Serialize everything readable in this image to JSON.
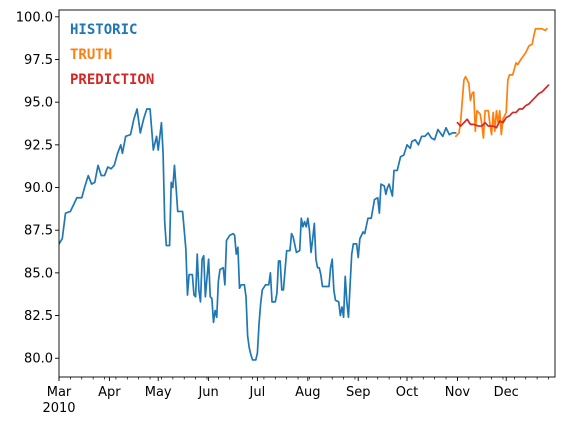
{
  "chart_data": {
    "type": "line",
    "title": "",
    "xlabel": "",
    "ylabel": "",
    "x_range": [
      "2010-03-01",
      "2010-12-31"
    ],
    "ylim": [
      78.9,
      100.4
    ],
    "grid": false,
    "legend_placement": "top-left",
    "y_ticks": [
      {
        "value": 80.0,
        "label": "80.0"
      },
      {
        "value": 82.5,
        "label": "82.5"
      },
      {
        "value": 85.0,
        "label": "85.0"
      },
      {
        "value": 87.5,
        "label": "87.5"
      },
      {
        "value": 90.0,
        "label": "90.0"
      },
      {
        "value": 92.5,
        "label": "92.5"
      },
      {
        "value": 95.0,
        "label": "95.0"
      },
      {
        "value": 97.5,
        "label": "97.5"
      },
      {
        "value": 100.0,
        "label": "100.0"
      }
    ],
    "x_ticks": [
      {
        "date": "2010-03-01",
        "label": "Mar",
        "sublabel": "2010"
      },
      {
        "date": "2010-04-01",
        "label": "Apr"
      },
      {
        "date": "2010-05-01",
        "label": "May"
      },
      {
        "date": "2010-06-01",
        "label": "Jun"
      },
      {
        "date": "2010-07-01",
        "label": "Jul"
      },
      {
        "date": "2010-08-01",
        "label": "Aug"
      },
      {
        "date": "2010-09-01",
        "label": "Sep"
      },
      {
        "date": "2010-10-01",
        "label": "Oct"
      },
      {
        "date": "2010-11-01",
        "label": "Nov"
      },
      {
        "date": "2010-12-01",
        "label": "Dec"
      }
    ],
    "series": [
      {
        "name": "HISTORIC",
        "color": "#1f77b4",
        "points": [
          [
            "2010-03-01",
            86.7
          ],
          [
            "2010-03-03",
            87.0
          ],
          [
            "2010-03-05",
            88.5
          ],
          [
            "2010-03-08",
            88.6
          ],
          [
            "2010-03-10",
            89.0
          ],
          [
            "2010-03-12",
            89.4
          ],
          [
            "2010-03-15",
            89.4
          ],
          [
            "2010-03-17",
            90.1
          ],
          [
            "2010-03-19",
            90.7
          ],
          [
            "2010-03-21",
            90.2
          ],
          [
            "2010-03-23",
            90.3
          ],
          [
            "2010-03-25",
            91.3
          ],
          [
            "2010-03-27",
            90.7
          ],
          [
            "2010-03-29",
            90.7
          ],
          [
            "2010-03-31",
            91.2
          ],
          [
            "2010-04-02",
            91.1
          ],
          [
            "2010-04-04",
            91.3
          ],
          [
            "2010-04-06",
            92.0
          ],
          [
            "2010-04-08",
            92.5
          ],
          [
            "2010-04-09",
            92.0
          ],
          [
            "2010-04-11",
            93.0
          ],
          [
            "2010-04-14",
            93.1
          ],
          [
            "2010-04-16",
            94.0
          ],
          [
            "2010-04-18",
            94.6
          ],
          [
            "2010-04-20",
            93.2
          ],
          [
            "2010-04-22",
            94.0
          ],
          [
            "2010-04-24",
            94.6
          ],
          [
            "2010-04-26",
            94.6
          ],
          [
            "2010-04-28",
            92.2
          ],
          [
            "2010-04-30",
            93.0
          ],
          [
            "2010-05-01",
            92.2
          ],
          [
            "2010-05-03",
            93.8
          ],
          [
            "2010-05-04",
            92.0
          ],
          [
            "2010-05-05",
            88.0
          ],
          [
            "2010-05-06",
            86.6
          ],
          [
            "2010-05-08",
            86.6
          ],
          [
            "2010-05-09",
            90.3
          ],
          [
            "2010-05-10",
            90.0
          ],
          [
            "2010-05-11",
            91.3
          ],
          [
            "2010-05-12",
            90.0
          ],
          [
            "2010-05-13",
            88.6
          ],
          [
            "2010-05-16",
            88.6
          ],
          [
            "2010-05-18",
            86.4
          ],
          [
            "2010-05-19",
            83.7
          ],
          [
            "2010-05-20",
            84.9
          ],
          [
            "2010-05-22",
            84.9
          ],
          [
            "2010-05-23",
            83.7
          ],
          [
            "2010-05-24",
            83.6
          ],
          [
            "2010-05-25",
            86.1
          ],
          [
            "2010-05-26",
            84.0
          ],
          [
            "2010-05-27",
            83.3
          ],
          [
            "2010-05-28",
            85.8
          ],
          [
            "2010-05-29",
            86.0
          ],
          [
            "2010-05-30",
            83.6
          ],
          [
            "2010-06-01",
            85.8
          ],
          [
            "2010-06-02",
            83.6
          ],
          [
            "2010-06-03",
            83.5
          ],
          [
            "2010-06-04",
            82.1
          ],
          [
            "2010-06-05",
            82.8
          ],
          [
            "2010-06-06",
            82.4
          ],
          [
            "2010-06-07",
            84.5
          ],
          [
            "2010-06-08",
            85.2
          ],
          [
            "2010-06-10",
            85.3
          ],
          [
            "2010-06-11",
            84.3
          ],
          [
            "2010-06-12",
            86.9
          ],
          [
            "2010-06-14",
            87.2
          ],
          [
            "2010-06-16",
            87.3
          ],
          [
            "2010-06-17",
            87.2
          ],
          [
            "2010-06-18",
            86.1
          ],
          [
            "2010-06-19",
            86.5
          ],
          [
            "2010-06-20",
            84.1
          ],
          [
            "2010-06-21",
            84.3
          ],
          [
            "2010-06-23",
            84.3
          ],
          [
            "2010-06-24",
            83.6
          ],
          [
            "2010-06-25",
            81.3
          ],
          [
            "2010-06-26",
            80.6
          ],
          [
            "2010-06-27",
            80.2
          ],
          [
            "2010-06-28",
            79.9
          ],
          [
            "2010-06-30",
            79.9
          ],
          [
            "2010-07-01",
            80.3
          ],
          [
            "2010-07-02",
            82.0
          ],
          [
            "2010-07-03",
            83.2
          ],
          [
            "2010-07-04",
            84.0
          ],
          [
            "2010-07-06",
            84.3
          ],
          [
            "2010-07-08",
            84.3
          ],
          [
            "2010-07-09",
            85.0
          ],
          [
            "2010-07-10",
            83.3
          ],
          [
            "2010-07-12",
            83.3
          ],
          [
            "2010-07-13",
            83.8
          ],
          [
            "2010-07-14",
            85.7
          ],
          [
            "2010-07-15",
            85.7
          ],
          [
            "2010-07-16",
            84.0
          ],
          [
            "2010-07-17",
            84.0
          ],
          [
            "2010-07-19",
            86.3
          ],
          [
            "2010-07-21",
            86.3
          ],
          [
            "2010-07-22",
            87.3
          ],
          [
            "2010-07-23",
            87.1
          ],
          [
            "2010-07-25",
            86.2
          ],
          [
            "2010-07-27",
            86.3
          ],
          [
            "2010-07-28",
            88.2
          ],
          [
            "2010-07-29",
            87.7
          ],
          [
            "2010-07-30",
            88.0
          ],
          [
            "2010-07-31",
            87.7
          ],
          [
            "2010-08-01",
            88.2
          ],
          [
            "2010-08-02",
            87.5
          ],
          [
            "2010-08-03",
            86.2
          ],
          [
            "2010-08-04",
            87.0
          ],
          [
            "2010-08-05",
            87.9
          ],
          [
            "2010-08-06",
            85.8
          ],
          [
            "2010-08-07",
            85.3
          ],
          [
            "2010-08-08",
            85.3
          ],
          [
            "2010-08-09",
            84.9
          ],
          [
            "2010-08-10",
            84.2
          ],
          [
            "2010-08-12",
            84.2
          ],
          [
            "2010-08-14",
            84.2
          ],
          [
            "2010-08-15",
            85.3
          ],
          [
            "2010-08-16",
            85.8
          ],
          [
            "2010-08-17",
            84.0
          ],
          [
            "2010-08-18",
            83.4
          ],
          [
            "2010-08-20",
            83.3
          ],
          [
            "2010-08-21",
            82.5
          ],
          [
            "2010-08-22",
            83.0
          ],
          [
            "2010-08-23",
            82.4
          ],
          [
            "2010-08-24",
            84.8
          ],
          [
            "2010-08-25",
            83.3
          ],
          [
            "2010-08-26",
            82.4
          ],
          [
            "2010-08-27",
            84.3
          ],
          [
            "2010-08-28",
            86.1
          ],
          [
            "2010-08-29",
            86.7
          ],
          [
            "2010-08-31",
            86.7
          ],
          [
            "2010-09-01",
            85.9
          ],
          [
            "2010-09-02",
            87.0
          ],
          [
            "2010-09-04",
            87.4
          ],
          [
            "2010-09-05",
            87.3
          ],
          [
            "2010-09-07",
            88.2
          ],
          [
            "2010-09-09",
            88.2
          ],
          [
            "2010-09-11",
            89.3
          ],
          [
            "2010-09-13",
            89.4
          ],
          [
            "2010-09-14",
            88.5
          ],
          [
            "2010-09-15",
            90.2
          ],
          [
            "2010-09-17",
            90.1
          ],
          [
            "2010-09-18",
            89.6
          ],
          [
            "2010-09-19",
            90.0
          ],
          [
            "2010-09-20",
            90.2
          ],
          [
            "2010-09-22",
            89.5
          ],
          [
            "2010-09-23",
            91.0
          ],
          [
            "2010-09-25",
            91.0
          ],
          [
            "2010-09-27",
            91.8
          ],
          [
            "2010-09-29",
            91.9
          ],
          [
            "2010-10-01",
            92.5
          ],
          [
            "2010-10-03",
            92.3
          ],
          [
            "2010-10-04",
            92.7
          ],
          [
            "2010-10-06",
            92.8
          ],
          [
            "2010-10-08",
            92.5
          ],
          [
            "2010-10-10",
            93.0
          ],
          [
            "2010-10-12",
            93.0
          ],
          [
            "2010-10-14",
            93.2
          ],
          [
            "2010-10-16",
            92.9
          ],
          [
            "2010-10-18",
            92.8
          ],
          [
            "2010-10-20",
            93.4
          ],
          [
            "2010-10-23",
            93.0
          ],
          [
            "2010-10-25",
            93.5
          ],
          [
            "2010-10-27",
            93.1
          ],
          [
            "2010-10-29",
            93.2
          ],
          [
            "2010-10-31",
            93.2
          ]
        ]
      },
      {
        "name": "TRUTH",
        "color": "#ff7f0e",
        "points": [
          [
            "2010-10-31",
            93.0
          ],
          [
            "2010-11-02",
            93.2
          ],
          [
            "2010-11-03",
            93.9
          ],
          [
            "2010-11-05",
            96.3
          ],
          [
            "2010-11-06",
            96.5
          ],
          [
            "2010-11-08",
            96.1
          ],
          [
            "2010-11-09",
            95.1
          ],
          [
            "2010-11-10",
            95.5
          ],
          [
            "2010-11-11",
            95.6
          ],
          [
            "2010-11-12",
            93.3
          ],
          [
            "2010-11-13",
            94.5
          ],
          [
            "2010-11-15",
            94.3
          ],
          [
            "2010-11-16",
            93.7
          ],
          [
            "2010-11-17",
            92.9
          ],
          [
            "2010-11-18",
            94.5
          ],
          [
            "2010-11-20",
            94.5
          ],
          [
            "2010-11-21",
            93.7
          ],
          [
            "2010-11-22",
            93.1
          ],
          [
            "2010-11-23",
            94.4
          ],
          [
            "2010-11-24",
            93.3
          ],
          [
            "2010-11-25",
            94.5
          ],
          [
            "2010-11-26",
            93.8
          ],
          [
            "2010-11-27",
            94.5
          ],
          [
            "2010-11-28",
            93.1
          ],
          [
            "2010-11-29",
            94.0
          ],
          [
            "2010-12-01",
            94.4
          ],
          [
            "2010-12-02",
            96.3
          ],
          [
            "2010-12-03",
            96.6
          ],
          [
            "2010-12-05",
            96.6
          ],
          [
            "2010-12-07",
            97.3
          ],
          [
            "2010-12-08",
            97.2
          ],
          [
            "2010-12-10",
            97.5
          ],
          [
            "2010-12-13",
            97.9
          ],
          [
            "2010-12-15",
            98.3
          ],
          [
            "2010-12-17",
            98.4
          ],
          [
            "2010-12-18",
            98.9
          ],
          [
            "2010-12-19",
            99.3
          ],
          [
            "2010-12-21",
            99.3
          ],
          [
            "2010-12-23",
            99.3
          ],
          [
            "2010-12-25",
            99.2
          ],
          [
            "2010-12-26",
            99.3
          ]
        ]
      },
      {
        "name": "PREDICTION",
        "color": "#d62728",
        "points": [
          [
            "2010-11-01",
            93.8
          ],
          [
            "2010-11-03",
            93.6
          ],
          [
            "2010-11-05",
            93.8
          ],
          [
            "2010-11-07",
            94.0
          ],
          [
            "2010-11-09",
            93.7
          ],
          [
            "2010-11-11",
            93.7
          ],
          [
            "2010-11-14",
            93.6
          ],
          [
            "2010-11-16",
            93.6
          ],
          [
            "2010-11-18",
            93.8
          ],
          [
            "2010-11-20",
            93.6
          ],
          [
            "2010-11-23",
            93.6
          ],
          [
            "2010-11-25",
            93.5
          ],
          [
            "2010-11-27",
            93.9
          ],
          [
            "2010-11-29",
            93.8
          ],
          [
            "2010-12-01",
            94.1
          ],
          [
            "2010-12-03",
            94.2
          ],
          [
            "2010-12-05",
            94.4
          ],
          [
            "2010-12-07",
            94.4
          ],
          [
            "2010-12-09",
            94.6
          ],
          [
            "2010-12-11",
            94.6
          ],
          [
            "2010-12-13",
            94.8
          ],
          [
            "2010-12-15",
            94.9
          ],
          [
            "2010-12-17",
            95.1
          ],
          [
            "2010-12-19",
            95.3
          ],
          [
            "2010-12-21",
            95.5
          ],
          [
            "2010-12-23",
            95.6
          ],
          [
            "2010-12-25",
            95.8
          ],
          [
            "2010-12-27",
            96.0
          ]
        ]
      }
    ]
  }
}
